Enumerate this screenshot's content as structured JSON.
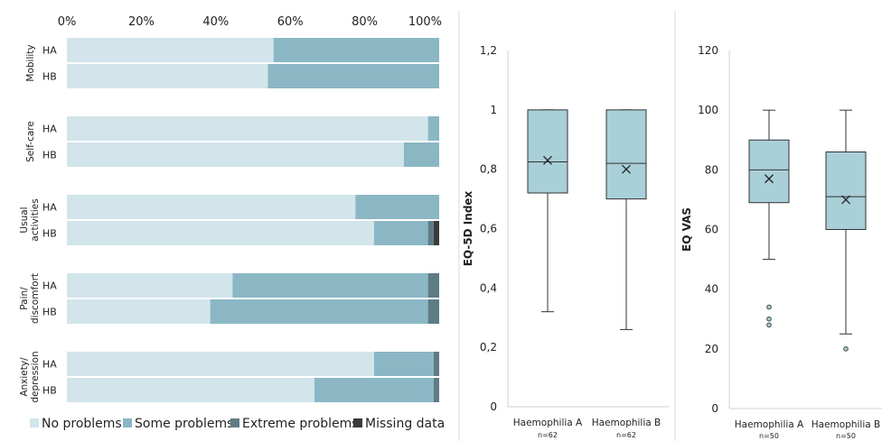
{
  "chart_data": [
    {
      "type": "bar",
      "orientation": "horizontal",
      "stacked": true,
      "x_axis": {
        "ticks": [
          "0%",
          "20%",
          "40%",
          "60%",
          "80%",
          "100%"
        ],
        "range": [
          0,
          100
        ],
        "position": "top"
      },
      "dimensions": [
        {
          "label": "Mobility",
          "rows": [
            {
              "group": "HA",
              "values": [
                55.5,
                44.5,
                0,
                0
              ]
            },
            {
              "group": "HB",
              "values": [
                54,
                46,
                0,
                0
              ]
            }
          ]
        },
        {
          "label": "Self-care",
          "rows": [
            {
              "group": "HA",
              "values": [
                97,
                3,
                0,
                0
              ]
            },
            {
              "group": "HB",
              "values": [
                90.5,
                9.5,
                0,
                0
              ]
            }
          ]
        },
        {
          "label": "Usual activities",
          "rows": [
            {
              "group": "HA",
              "values": [
                77.5,
                22.5,
                0,
                0
              ]
            },
            {
              "group": "HB",
              "values": [
                82.5,
                14.5,
                1.5,
                1.5
              ]
            }
          ]
        },
        {
          "label": "Pain/ discomfort",
          "rows": [
            {
              "group": "HA",
              "values": [
                44.5,
                52.5,
                3,
                0
              ]
            },
            {
              "group": "HB",
              "values": [
                38.5,
                58.5,
                3,
                0
              ]
            }
          ]
        },
        {
          "label": "Anxiety/ depression",
          "rows": [
            {
              "group": "HA",
              "values": [
                82.5,
                16,
                1.5,
                0
              ]
            },
            {
              "group": "HB",
              "values": [
                66.5,
                32,
                1.5,
                0
              ]
            }
          ]
        }
      ],
      "series": [
        {
          "name": "No problems",
          "color": "#d2e5eb"
        },
        {
          "name": "Some problems",
          "color": "#8bb7c5"
        },
        {
          "name": "Extreme problems",
          "color": "#5e7c86"
        },
        {
          "name": "Missing data",
          "color": "#3a3a3a"
        }
      ],
      "legend": "bottom",
      "grid": false
    },
    {
      "type": "boxplot",
      "ylabel": "EQ-5D Index",
      "y_ticks": [
        "0",
        "0,2",
        "0,4",
        "0,6",
        "0,8",
        "1",
        "1,2"
      ],
      "ylim": [
        0,
        1.2
      ],
      "boxes": [
        {
          "name": "Haemophilia A",
          "n": "n=62",
          "min": 0.32,
          "q1": 0.72,
          "median": 0.825,
          "q3": 1.0,
          "max": 1.0,
          "mean": 0.83,
          "outliers": []
        },
        {
          "name": "Haemophilia B",
          "n": "n=62",
          "min": 0.26,
          "q1": 0.7,
          "median": 0.82,
          "q3": 1.0,
          "max": 1.0,
          "mean": 0.8,
          "outliers": []
        }
      ],
      "box_color": "#a9cfd8",
      "grid": false
    },
    {
      "type": "boxplot",
      "ylabel": "EQ VAS",
      "y_ticks": [
        "0",
        "20",
        "40",
        "60",
        "80",
        "100",
        "120"
      ],
      "ylim": [
        0,
        120
      ],
      "boxes": [
        {
          "name": "Haemophilia A",
          "n": "n=50",
          "min": 50,
          "q1": 69,
          "median": 80,
          "q3": 90,
          "max": 100,
          "mean": 77,
          "outliers": [
            34,
            30,
            28
          ]
        },
        {
          "name": "Haemophilia B",
          "n": "n=50",
          "min": 25,
          "q1": 60,
          "median": 71,
          "q3": 86,
          "max": 100,
          "mean": 70,
          "outliers": [
            20
          ]
        }
      ],
      "box_color": "#a9cfd8",
      "grid": false
    }
  ]
}
